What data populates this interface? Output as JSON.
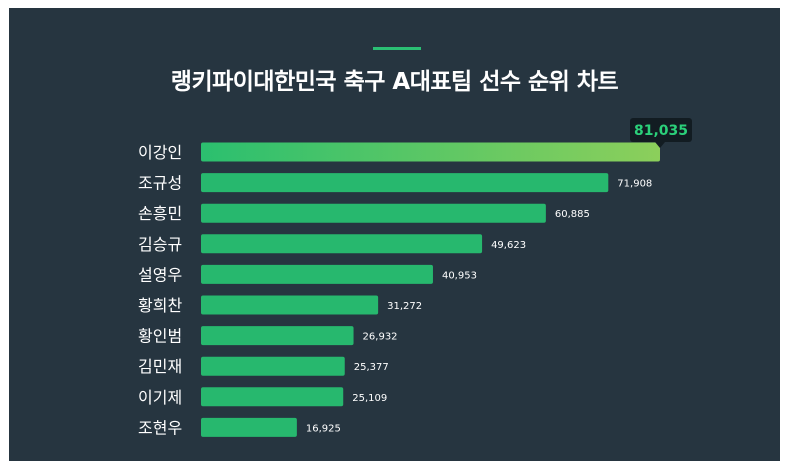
{
  "title": "랭키파이대한민국 축구 A대표팀 선수 순위 차트",
  "colors": {
    "background": "#263540",
    "bar": "#27b86e",
    "top_bar_start": "#2bbf6f",
    "top_bar_end": "#8ccf5b",
    "accent": "#2bbf74",
    "callout_bg": "#121c22"
  },
  "chart_data": {
    "type": "bar",
    "orientation": "horizontal",
    "title": "랭키파이대한민국 축구 A대표팀 선수 순위 차트",
    "categories": [
      "이강인",
      "조규성",
      "손흥민",
      "김승규",
      "설영우",
      "황희찬",
      "황인범",
      "김민재",
      "이기제",
      "조현우"
    ],
    "values": [
      81035,
      71908,
      60885,
      49623,
      40953,
      31272,
      26932,
      25377,
      25109,
      16925
    ],
    "value_labels": [
      "81,035",
      "71,908",
      "60,885",
      "49,623",
      "40,953",
      "31,272",
      "26,932",
      "25,377",
      "25,109",
      "16,925"
    ],
    "xlim": [
      0,
      81035
    ],
    "grid": false,
    "legend": "none"
  }
}
